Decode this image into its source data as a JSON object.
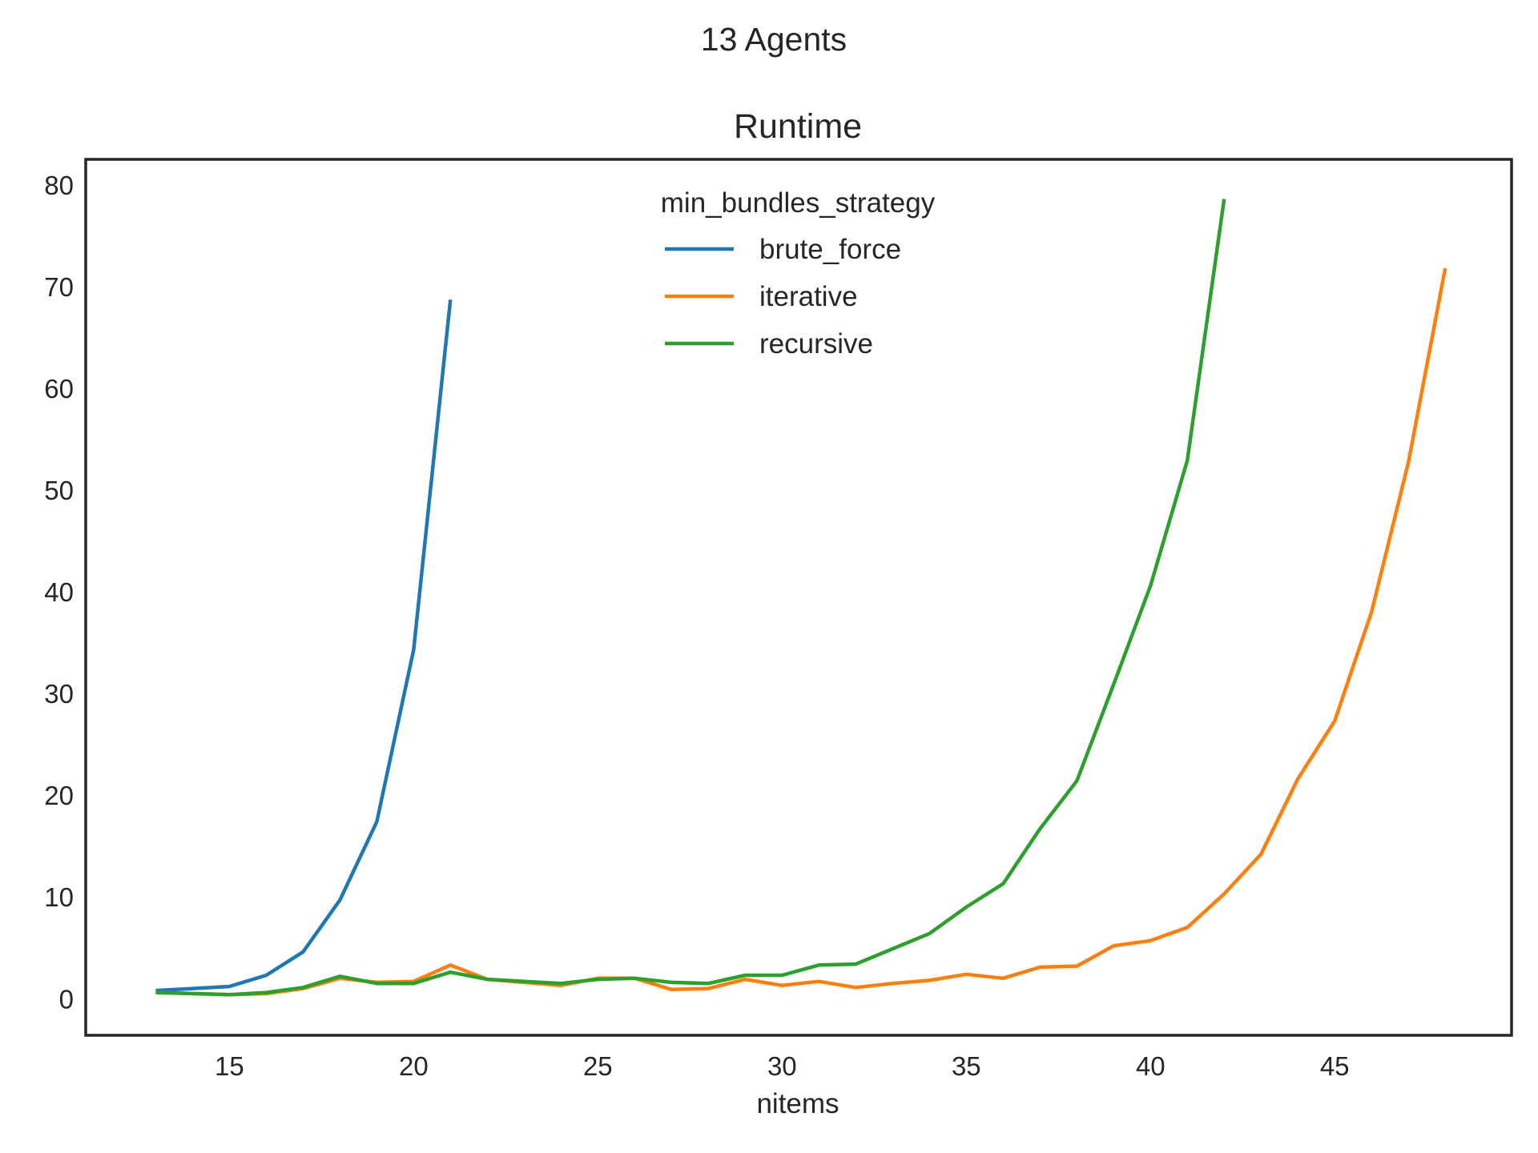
{
  "figure": {
    "suptitle": "13 Agents",
    "axes_title": "Runtime"
  },
  "chart_data": {
    "type": "line",
    "title": "Runtime",
    "suptitle": "13 Agents",
    "xlabel": "nitems",
    "ylabel": "",
    "xlim": [
      11.1,
      49.8
    ],
    "ylim": [
      -3.6,
      82.5
    ],
    "xticks": [
      15,
      20,
      25,
      30,
      35,
      40,
      45
    ],
    "yticks": [
      0,
      10,
      20,
      30,
      40,
      50,
      60,
      70,
      80
    ],
    "grid": false,
    "legend": {
      "title": "min_bundles_strategy",
      "position": "upper center"
    },
    "series": [
      {
        "name": "brute_force",
        "color": "#1f77b4",
        "x": [
          13,
          14,
          15,
          16,
          17,
          18,
          19,
          20,
          21
        ],
        "y": [
          0.8,
          1.0,
          1.2,
          2.3,
          4.6,
          9.7,
          17.4,
          34.3,
          68.7
        ]
      },
      {
        "name": "iterative",
        "color": "#ff7f0e",
        "x": [
          13,
          14,
          15,
          16,
          17,
          18,
          19,
          20,
          21,
          22,
          23,
          24,
          25,
          26,
          27,
          28,
          29,
          30,
          31,
          32,
          33,
          34,
          35,
          36,
          37,
          38,
          39,
          40,
          41,
          42,
          43,
          44,
          45,
          46,
          47,
          48
        ],
        "y": [
          0.6,
          0.5,
          0.4,
          0.5,
          1.0,
          2.0,
          1.6,
          1.7,
          3.3,
          1.9,
          1.6,
          1.3,
          2.0,
          2.0,
          0.9,
          1.0,
          1.9,
          1.3,
          1.7,
          1.1,
          1.5,
          1.8,
          2.4,
          2.0,
          3.1,
          3.2,
          5.2,
          5.7,
          7.0,
          10.3,
          14.2,
          21.6,
          27.3,
          38.0,
          52.7,
          71.8
        ]
      },
      {
        "name": "recursive",
        "color": "#2ca02c",
        "x": [
          13,
          14,
          15,
          16,
          17,
          18,
          19,
          20,
          21,
          22,
          23,
          24,
          25,
          26,
          27,
          28,
          29,
          30,
          31,
          32,
          33,
          34,
          35,
          36,
          37,
          38,
          39,
          40,
          41,
          42
        ],
        "y": [
          0.6,
          0.5,
          0.4,
          0.6,
          1.1,
          2.2,
          1.5,
          1.5,
          2.6,
          1.9,
          1.7,
          1.5,
          1.9,
          2.0,
          1.6,
          1.5,
          2.3,
          2.3,
          3.3,
          3.4,
          4.9,
          6.4,
          9.0,
          11.3,
          16.7,
          21.4,
          30.9,
          40.6,
          52.9,
          78.6
        ]
      }
    ]
  }
}
